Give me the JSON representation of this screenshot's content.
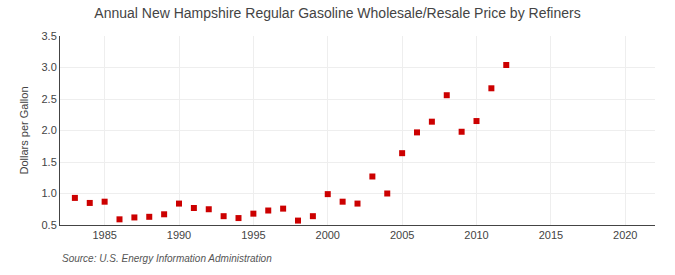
{
  "chart_data": {
    "type": "scatter",
    "title": "Annual New Hampshire Regular Gasoline Wholesale/Resale Price by Refiners",
    "ylabel": "Dollars per Gallon",
    "annotations": [
      "Source: U.S. Energy Information Administration"
    ],
    "x": [
      1983,
      1984,
      1985,
      1986,
      1987,
      1988,
      1989,
      1990,
      1991,
      1992,
      1993,
      1994,
      1995,
      1996,
      1997,
      1998,
      1999,
      2000,
      2001,
      2002,
      2003,
      2004,
      2005,
      2006,
      2007,
      2008,
      2009,
      2010,
      2011,
      2012
    ],
    "values": [
      0.93,
      0.85,
      0.87,
      0.59,
      0.62,
      0.63,
      0.67,
      0.84,
      0.77,
      0.75,
      0.64,
      0.61,
      0.68,
      0.73,
      0.76,
      0.57,
      0.64,
      0.99,
      0.87,
      0.84,
      1.27,
      1.0,
      1.64,
      1.97,
      2.14,
      2.56,
      1.98,
      2.15,
      2.67,
      3.04
    ],
    "color": "#cc0000",
    "marker": "square",
    "xlim": [
      1982,
      2022
    ],
    "ylim": [
      0.5,
      3.5
    ],
    "xticks": [
      1985,
      1990,
      1995,
      2000,
      2005,
      2010,
      2015,
      2020
    ],
    "yticks": [
      0.5,
      {
        "value": 1.0,
        "label": "1.0"
      },
      1.5,
      {
        "value": 2.0,
        "label": "2.0"
      },
      2.5,
      {
        "value": 3.0,
        "label": "3.0"
      },
      3.5
    ],
    "grid": true
  }
}
